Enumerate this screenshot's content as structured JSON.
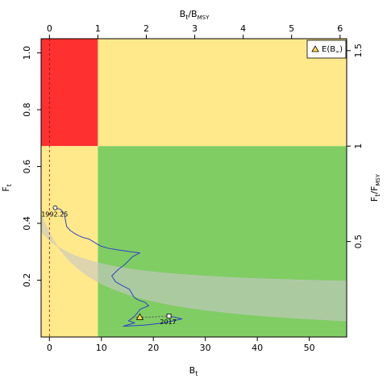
{
  "chart_data": {
    "type": "line",
    "xlabel_bottom": "B",
    "xlabel_bottom_sub": "t",
    "xlabel_top": "B",
    "xlabel_top_sub": "t",
    "xlabel_top_den": "B",
    "xlabel_top_den_sub": "MSY",
    "ylabel_left": "F",
    "ylabel_left_sub": "t",
    "ylabel_right": "F",
    "ylabel_right_sub": "t",
    "ylabel_right_den": "F",
    "ylabel_right_den_sub": "MSY",
    "xlim": [
      -1.6,
      57.2
    ],
    "ylim": [
      0.0,
      1.05
    ],
    "bottom_ticks": [
      0,
      10,
      20,
      30,
      40,
      50
    ],
    "left_ticks": [
      0.2,
      0.4,
      0.6,
      0.8,
      1.0
    ],
    "top_ticks": [
      0,
      1,
      2,
      3,
      4,
      5,
      6
    ],
    "right_ticks": [
      0.5,
      1,
      1.5
    ],
    "bmsy": 9.32,
    "fmsy": 0.672,
    "k": 10.5,
    "grid": false,
    "legend": {
      "position": "top-right",
      "label": "E(B",
      "label_sub": "∞",
      "label_close": ")"
    },
    "colors": {
      "red": "#ff3030",
      "yellow": "#ffe98b",
      "green": "#80cd64",
      "overlay": "#c8c8c8",
      "trajectory": "#3040c8",
      "dashed": "#7a1414"
    },
    "catch_curve": {
      "c": 3.85
    },
    "lower_curve": {
      "c": 1.8,
      "a": 0.17
    },
    "trajectory": [
      [
        1.1,
        0.455
      ],
      [
        1.5,
        0.452
      ],
      [
        2.1,
        0.45
      ],
      [
        2.6,
        0.44
      ],
      [
        2.9,
        0.43
      ],
      [
        3.1,
        0.41
      ],
      [
        3.3,
        0.39
      ],
      [
        3.5,
        0.385
      ],
      [
        4.0,
        0.375
      ],
      [
        4.8,
        0.365
      ],
      [
        5.6,
        0.357
      ],
      [
        6.5,
        0.35
      ],
      [
        7.6,
        0.345
      ],
      [
        8.5,
        0.335
      ],
      [
        9.2,
        0.327
      ],
      [
        9.9,
        0.32
      ],
      [
        11.4,
        0.312
      ],
      [
        13.4,
        0.306
      ],
      [
        15.6,
        0.3
      ],
      [
        17.4,
        0.296
      ],
      [
        16.0,
        0.283
      ],
      [
        15.3,
        0.27
      ],
      [
        14.5,
        0.255
      ],
      [
        13.2,
        0.237
      ],
      [
        12.0,
        0.215
      ],
      [
        12.7,
        0.195
      ],
      [
        14.1,
        0.18
      ],
      [
        15.4,
        0.168
      ],
      [
        15.9,
        0.152
      ],
      [
        16.3,
        0.14
      ],
      [
        17.0,
        0.131
      ],
      [
        18.4,
        0.122
      ],
      [
        19.1,
        0.11
      ],
      [
        17.5,
        0.098
      ],
      [
        16.8,
        0.082
      ],
      [
        16.2,
        0.07
      ],
      [
        15.2,
        0.057
      ],
      [
        16.4,
        0.05
      ],
      [
        14.2,
        0.038
      ],
      [
        18.3,
        0.042
      ],
      [
        22.1,
        0.05
      ],
      [
        25.5,
        0.064
      ],
      [
        23.0,
        0.074
      ]
    ],
    "annotations": [
      {
        "text": "1992.25",
        "x": 1.0,
        "y": 0.455
      },
      {
        "text": "2017",
        "x": 23.0,
        "y": 0.074
      }
    ],
    "equilibrium_marker": {
      "x": 17.4,
      "y": 0.07
    },
    "projection": [
      [
        16.0,
        0.07
      ],
      [
        19.5,
        0.07
      ],
      [
        23.0,
        0.074
      ]
    ],
    "dashed_x": 0.0
  }
}
